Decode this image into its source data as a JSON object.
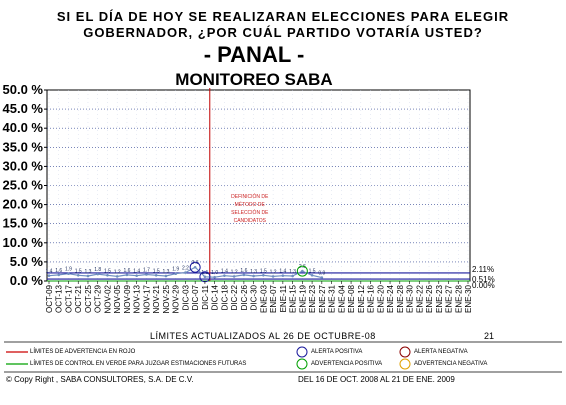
{
  "header": {
    "question_line1": "SI EL DÍA DE HOY SE REALIZARAN ELECCIONES PARA ELEGIR",
    "question_line2": "GOBERNADOR, ¿POR CUÁL PARTIDO VOTARÍA USTED?",
    "party": "- PANAL -",
    "subtitle": "MONITOREO SABA"
  },
  "chart_data": {
    "type": "line",
    "title": "- PANAL -",
    "subtitle": "MONITOREO SABA",
    "xlabel": "",
    "ylabel": "",
    "ylim": [
      0,
      50
    ],
    "y_ticks": [
      "50.0 %",
      "45.0 %",
      "40.0 %",
      "35.0 %",
      "30.0 %",
      "25.0 %",
      "20.0 %",
      "15.0 %",
      "10.0 %",
      "5.0 %",
      "0.0 %"
    ],
    "y_tick_values": [
      50,
      45,
      40,
      35,
      30,
      25,
      20,
      15,
      10,
      5,
      0
    ],
    "categories": [
      "OCT-09",
      "OCT-13",
      "OCT-17",
      "OCT-21",
      "OCT-25",
      "OCT-29",
      "NOV-02",
      "NOV-05",
      "NOV-09",
      "NOV-13",
      "NOV-17",
      "NOV-21",
      "NOV-25",
      "NOV-29",
      "DIC-03",
      "DIC-07",
      "DIC-11",
      "DIC-14",
      "DIC-18",
      "DIC-22",
      "DIC-26",
      "DIC-30",
      "ENE-03",
      "ENE-07",
      "ENE-11",
      "ENE-15",
      "ENE-19",
      "ENE-23",
      "ENE-27",
      "ENE-31",
      "ENE-04",
      "ENE-08",
      "ENE-12",
      "ENE-16",
      "ENE-20",
      "ENE-24",
      "ENE-28",
      "ENE-30",
      "ENE-22",
      "ENE-26",
      "ENE-23",
      "ENE-27",
      "ENE-28",
      "ENE-30"
    ],
    "series": [
      {
        "role": "monitoreo",
        "color": "#6f8fc0",
        "values": [
          1.4,
          1.6,
          1.9,
          1.5,
          1.3,
          1.8,
          1.5,
          1.2,
          1.6,
          1.4,
          1.7,
          1.5,
          1.3,
          1.9,
          2.2,
          3.6,
          1.1,
          1.0,
          1.4,
          1.2,
          1.6,
          1.3,
          1.5,
          1.2,
          1.4,
          1.3,
          2.6,
          1.5,
          0.9,
          null,
          null,
          null,
          null,
          null,
          null,
          null,
          null,
          null,
          null,
          null,
          null,
          null,
          null,
          null
        ]
      }
    ],
    "data_labels": [
      "1.4",
      "1.6",
      "1.9",
      "1.5",
      "1.3",
      "1.8",
      "1.5",
      "1.2",
      "1.6",
      "1.4",
      "1.7",
      "1.5",
      "1.3",
      "1.9",
      "2.2",
      "3.6",
      "1.1",
      "1.0",
      "1.4",
      "1.2",
      "1.6",
      "1.3",
      "1.5",
      "1.2",
      "1.4",
      "1.3",
      "2.6",
      "1.5",
      "0.9"
    ],
    "reference_lines": [
      {
        "label": "2.11%",
        "value": 2.11,
        "color": "#1a1a9c"
      },
      {
        "label": "0.51%",
        "value": 0.51,
        "color": "#1a1a9c"
      },
      {
        "label": "0.00%",
        "value": 0.0,
        "color": "#00a000"
      }
    ],
    "event_marker": {
      "index": 16.5,
      "color": "#c00000",
      "label_lines": [
        "DEFINICIÓN DE",
        "MÉTODO DE",
        "SELECCIÓN DE",
        "CANDIDATOS"
      ]
    },
    "alerts": [
      {
        "index": 15,
        "kind": "ALERTA POSITIVA"
      },
      {
        "index": 16,
        "kind": "ALERTA POSITIVA"
      },
      {
        "index": 26,
        "kind": "ADVERTENCIA POSITIVA"
      }
    ],
    "grid": true,
    "legend_position": "bottom"
  },
  "footer": {
    "limits_note": "LÍMITES ACTUALIZADOS AL 26 DE OCTUBRE-08",
    "slide_number": "21",
    "legend": {
      "red_line": "LÍMITES DE ADVERTENCIA EN ROJO",
      "green_line": "LÍMITES DE CONTROL EN VERDE PARA JUZGAR ESTIMACIONES FUTURAS",
      "alert_positive": "ALERTA POSITIVA",
      "alert_negative": "ALERTA NEGATIVA",
      "warning_positive": "ADVERTENCIA POSITIVA",
      "warning_negative": "ADVERTENCIA NEGATIVA"
    },
    "legend_colors": {
      "red_line": "#cc0000",
      "green_line": "#00a000",
      "alert_positive": "#1a1a9c",
      "alert_negative": "#8b0000",
      "warning_positive": "#00a000",
      "warning_negative": "#e0a000"
    },
    "copyright": "© Copy Right , SABA CONSULTORES, S.A. DE C.V.",
    "period": "DEL 16 DE OCT. 2008 AL 21 DE ENE. 2009"
  }
}
